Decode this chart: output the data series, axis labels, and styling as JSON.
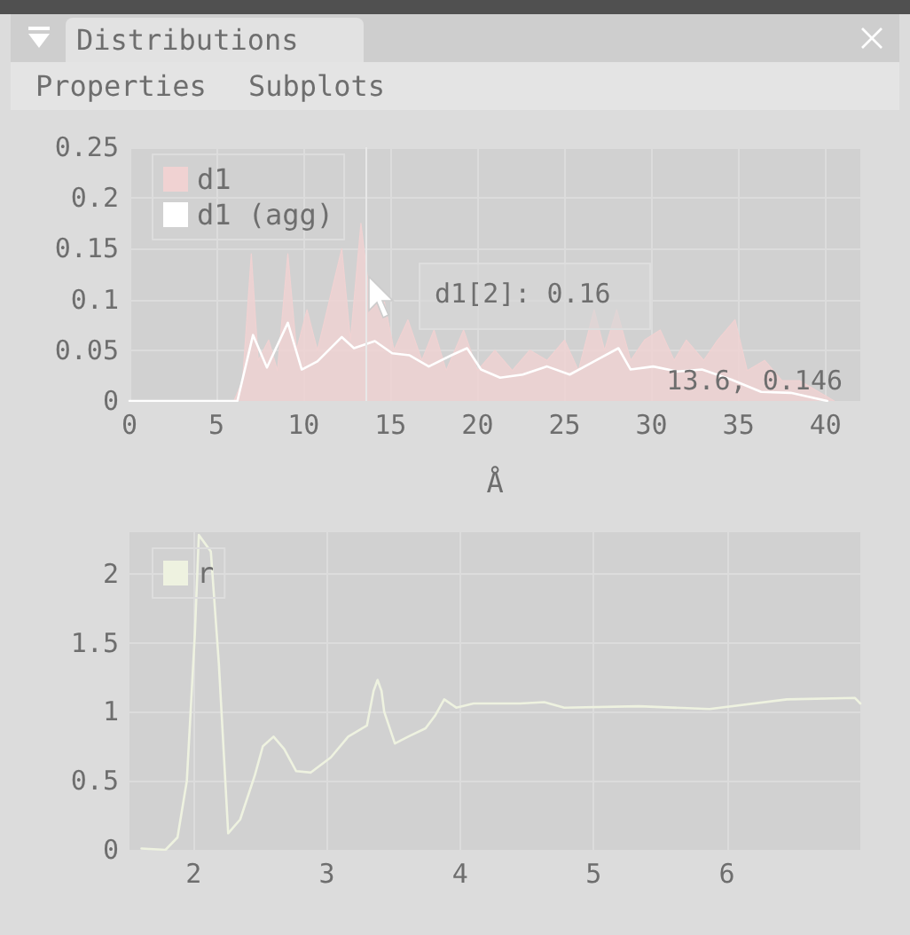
{
  "chart_data": [
    {
      "type": "line",
      "title": "Distributions",
      "xlabel": "Å",
      "xlim": [
        0,
        42
      ],
      "xticks": [
        0,
        5,
        10,
        15,
        20,
        25,
        30,
        35,
        40
      ],
      "ylim": [
        0,
        0.25
      ],
      "yticks": [
        0,
        0.05,
        0.1,
        0.15,
        0.2,
        0.25
      ],
      "grid": true,
      "legend": "top left",
      "marker": "none",
      "line_style": "solid",
      "annotations": [
        "Properties",
        "Subplots",
        "d1[2]: 0.16",
        "13.6, 0.146"
      ],
      "ref_lines": [
        {
          "axis": "x",
          "value": 13.6,
          "color": "#e8e8e8"
        }
      ],
      "series": [
        {
          "name": "d1",
          "type": "area",
          "color": "#f0d2d2",
          "x": [
            0,
            6,
            6.5,
            7,
            7.4,
            8,
            8.5,
            9.1,
            9.6,
            10.2,
            10.8,
            11.5,
            12.2,
            12.7,
            13.3,
            13.9,
            14.5,
            15.2,
            16,
            16.8,
            17.5,
            18.2,
            19.2,
            20,
            21,
            22,
            23,
            24,
            25,
            25.8,
            26.7,
            27.3,
            28,
            28.8,
            29.6,
            30.5,
            31.3,
            32,
            33,
            33.8,
            34.8,
            35.5,
            36.5,
            37.5,
            38.5,
            40,
            40.5
          ],
          "values": [
            0,
            0,
            0.02,
            0.145,
            0.04,
            0.06,
            0.03,
            0.145,
            0.05,
            0.09,
            0.05,
            0.1,
            0.15,
            0.06,
            0.175,
            0.09,
            0.11,
            0.05,
            0.08,
            0.04,
            0.07,
            0.03,
            0.07,
            0.03,
            0.05,
            0.03,
            0.05,
            0.04,
            0.06,
            0.03,
            0.09,
            0.05,
            0.09,
            0.04,
            0.06,
            0.07,
            0.04,
            0.06,
            0.04,
            0.06,
            0.08,
            0.03,
            0.04,
            0.02,
            0.02,
            0.005,
            0
          ]
        },
        {
          "name": "d1 (agg)",
          "type": "line",
          "color": "#ffffff",
          "x": [
            0,
            6.2,
            7.1,
            7.9,
            9.1,
            9.9,
            10.8,
            12.2,
            12.9,
            14.1,
            15.1,
            16.1,
            17.2,
            18.5,
            19.4,
            20.2,
            21.3,
            22.6,
            24,
            25.3,
            26.7,
            28.1,
            28.8,
            30.1,
            31.5,
            32.9,
            34.6,
            36.3,
            38,
            40.1
          ],
          "values": [
            0,
            0,
            0.065,
            0.033,
            0.077,
            0.031,
            0.039,
            0.063,
            0.052,
            0.059,
            0.047,
            0.045,
            0.034,
            0.045,
            0.052,
            0.031,
            0.023,
            0.026,
            0.034,
            0.026,
            0.039,
            0.052,
            0.031,
            0.034,
            0.029,
            0.031,
            0.021,
            0.009,
            0.008,
            0
          ]
        }
      ]
    },
    {
      "type": "line",
      "xlim": [
        1.52,
        7
      ],
      "xticks": [
        2,
        3,
        4,
        5,
        6
      ],
      "ylim": [
        0,
        2.3
      ],
      "yticks": [
        0,
        0.5,
        1,
        1.5,
        2
      ],
      "grid": true,
      "legend": "top left",
      "marker": "none",
      "line_style": "solid",
      "series": [
        {
          "name": "r",
          "color": "#eef2e0",
          "x": [
            1.61,
            1.79,
            1.88,
            1.95,
            2.01,
            2.04,
            2.13,
            2.19,
            2.26,
            2.35,
            2.46,
            2.52,
            2.6,
            2.68,
            2.77,
            2.88,
            3.03,
            3.16,
            3.3,
            3.35,
            3.38,
            3.41,
            3.43,
            3.51,
            3.61,
            3.74,
            3.81,
            3.88,
            3.97,
            4.1,
            4.45,
            4.63,
            4.78,
            5.34,
            5.87,
            6.45,
            6.96,
            7
          ],
          "values": [
            0.01,
            0,
            0.09,
            0.5,
            1.56,
            2.28,
            2.16,
            1.35,
            0.12,
            0.22,
            0.54,
            0.75,
            0.82,
            0.73,
            0.57,
            0.56,
            0.67,
            0.82,
            0.9,
            1.15,
            1.23,
            1.15,
            1,
            0.77,
            0.82,
            0.88,
            0.97,
            1.09,
            1.03,
            1.06,
            1.06,
            1.07,
            1.03,
            1.04,
            1.02,
            1.09,
            1.1,
            1.06
          ]
        }
      ]
    }
  ]
}
